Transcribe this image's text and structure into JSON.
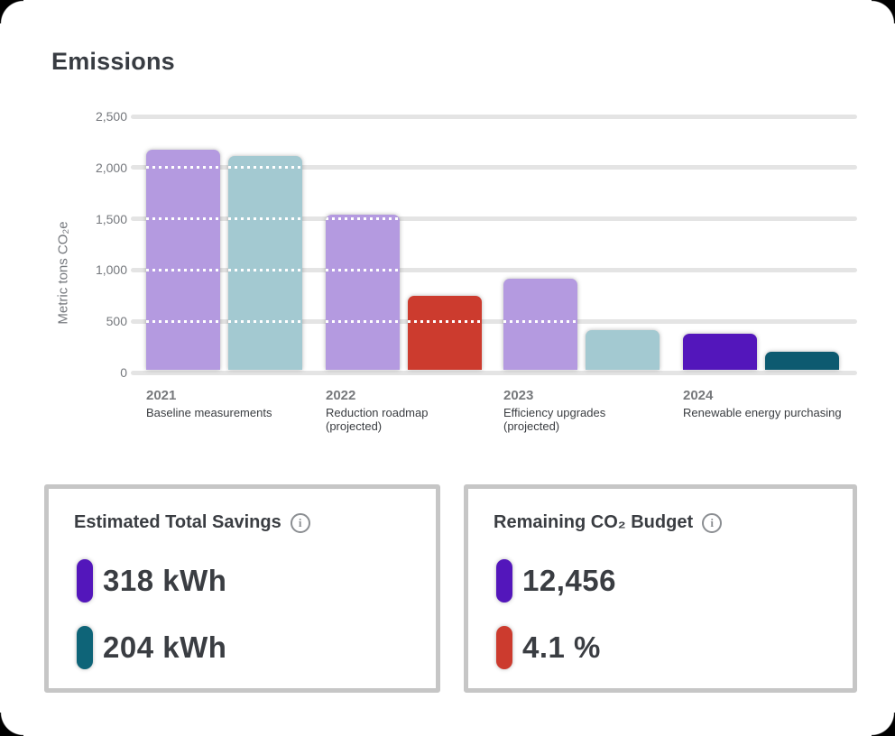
{
  "page_title": "Emissions",
  "chart_data": {
    "type": "bar",
    "title": "Emissions",
    "ylabel": "Metric tons CO₂e",
    "ylim": [
      0,
      2500
    ],
    "yticks": [
      "2,500",
      "2,000",
      "1,500",
      "1,000",
      "500",
      "0"
    ],
    "grid": true,
    "legend_position": "none",
    "groups": [
      {
        "year": "2021",
        "label_lines": [
          "Baseline measurements"
        ],
        "bars": [
          {
            "value": 2150,
            "color": "#b49ae0"
          },
          {
            "value": 2090,
            "color": "#a3c9d1"
          }
        ]
      },
      {
        "year": "2022",
        "label_lines": [
          "Reduction roadmap",
          "(projected)"
        ],
        "bars": [
          {
            "value": 1520,
            "color": "#b49ae0"
          },
          {
            "value": 730,
            "color": "#cc3b2e"
          }
        ]
      },
      {
        "year": "2023",
        "label_lines": [
          "Efficiency upgrades",
          "(projected)"
        ],
        "bars": [
          {
            "value": 890,
            "color": "#b49ae0"
          },
          {
            "value": 390,
            "color": "#a3c9d1"
          }
        ]
      },
      {
        "year": "2024",
        "label_lines": [
          "Renewable energy purchasing"
        ],
        "bars": [
          {
            "value": 360,
            "color": "#5316bb"
          },
          {
            "value": 180,
            "color": "#0d5a70"
          }
        ]
      }
    ]
  },
  "cards": [
    {
      "title": "Estimated Total Savings",
      "info_icon": "info-circle",
      "rows": [
        {
          "color": "#5316bb",
          "value": "318 kWh"
        },
        {
          "color": "#0e6478",
          "value": "204 kWh"
        }
      ]
    },
    {
      "title": "Remaining CO₂ Budget",
      "info_icon": "info-circle",
      "rows": [
        {
          "color": "#5316bb",
          "value": "12,456"
        },
        {
          "color": "#cc3b2e",
          "value": "4.1 %"
        }
      ]
    }
  ],
  "colors": {
    "grid": "#e4e4e4",
    "axis_text": "#75787d",
    "dark_text": "#3a3d42",
    "card_border": "#c6c6c6"
  }
}
